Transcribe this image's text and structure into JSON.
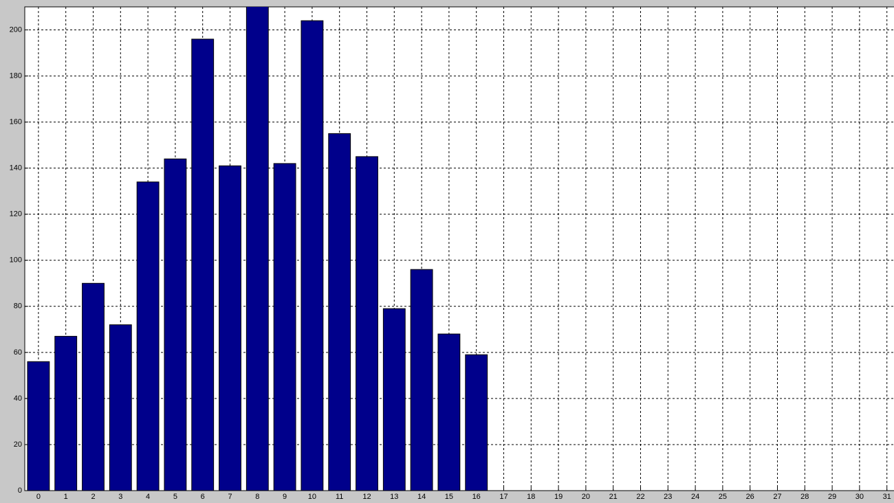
{
  "chart_data": {
    "type": "bar",
    "x": [
      0,
      1,
      2,
      3,
      4,
      5,
      6,
      7,
      8,
      9,
      10,
      11,
      12,
      13,
      14,
      15,
      16,
      17,
      18,
      19,
      20,
      21,
      22,
      23,
      24,
      25,
      26,
      27,
      28,
      29,
      30,
      31
    ],
    "values": [
      56,
      67,
      90,
      72,
      134,
      144,
      196,
      141,
      212,
      142,
      204,
      155,
      145,
      79,
      96,
      68,
      59,
      0,
      0,
      0,
      0,
      0,
      0,
      0,
      0,
      0,
      0,
      0,
      0,
      0,
      0,
      0
    ],
    "color": "#00008b",
    "xlim": [
      -0.5,
      31.5
    ],
    "xticks": [
      0,
      1,
      2,
      3,
      4,
      5,
      6,
      7,
      8,
      9,
      10,
      11,
      12,
      13,
      14,
      15,
      16,
      17,
      18,
      19,
      20,
      21,
      22,
      23,
      24,
      25,
      26,
      27,
      28,
      29,
      30,
      31
    ],
    "ylim": [
      0,
      210
    ],
    "yticks": [
      0,
      20,
      40,
      60,
      80,
      100,
      120,
      140,
      160,
      180,
      200
    ],
    "grid": true
  }
}
